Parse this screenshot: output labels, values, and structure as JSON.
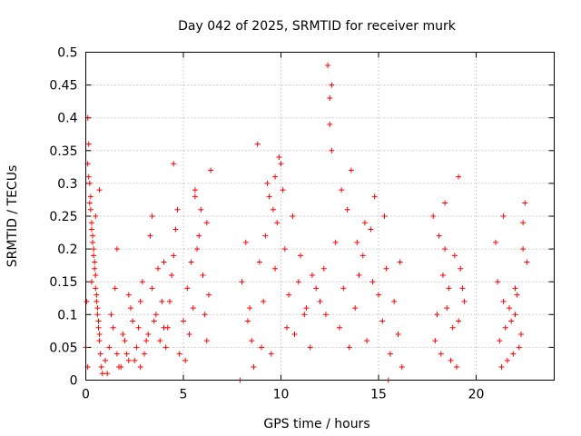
{
  "chart_data": {
    "type": "scatter",
    "title": "Day 042 of 2025, SRMTID for receiver murk",
    "xlabel": "GPS time / hours",
    "ylabel": "SRMTID / TECUs",
    "xlim": [
      0,
      24
    ],
    "ylim": [
      0,
      0.5
    ],
    "x_ticks": [
      "0",
      "5",
      "10",
      "15",
      "20"
    ],
    "y_ticks": [
      "0",
      "0.05",
      "0.1",
      "0.15",
      "0.2",
      "0.25",
      "0.3",
      "0.35",
      "0.4",
      "0.45",
      "0.5"
    ],
    "grid": true,
    "marker": "+",
    "color": "#ff0000",
    "series": [
      {
        "x": [
          0.0,
          0.05,
          0.1,
          0.15,
          0.2,
          0.25,
          0.3,
          0.35,
          0.4,
          0.45,
          0.5,
          0.55,
          0.6,
          0.65,
          0.7,
          0.75,
          0.8,
          0.85,
          0.1,
          0.2,
          0.3,
          0.4,
          0.5,
          0.6,
          0.7,
          0.15,
          0.25,
          0.35,
          0.45,
          0.55,
          0.65,
          0.1,
          0.3,
          0.5,
          0.7,
          1.0,
          1.2,
          1.4,
          1.6,
          1.8,
          2.0,
          2.2,
          2.4,
          2.6,
          2.8,
          3.0,
          3.2,
          3.4,
          3.6,
          3.8,
          4.0,
          1.1,
          1.3,
          1.5,
          1.7,
          1.9,
          2.1,
          2.3,
          2.5,
          2.7,
          2.9,
          3.1,
          3.3,
          3.5,
          3.7,
          3.9,
          1.6,
          2.2,
          2.8,
          3.4,
          4.0,
          4.1,
          4.3,
          4.5,
          4.7,
          4.2,
          4.4,
          4.6,
          4.8,
          5.0,
          5.2,
          5.4,
          5.6,
          5.8,
          6.0,
          6.2,
          6.4,
          5.1,
          5.3,
          5.5,
          5.7,
          5.9,
          6.1,
          6.3,
          4.5,
          5.6,
          6.2,
          7.9,
          8.2,
          8.5,
          8.8,
          9.1,
          9.4,
          9.7,
          10.0,
          10.3,
          10.6,
          10.9,
          11.2,
          11.5,
          11.8,
          8.0,
          8.3,
          8.6,
          8.9,
          9.2,
          9.5,
          9.8,
          10.1,
          10.4,
          10.7,
          11.0,
          11.3,
          11.6,
          9.0,
          9.3,
          9.6,
          9.9,
          10.2,
          8.4,
          9.7,
          12.0,
          12.2,
          12.4,
          12.6,
          12.8,
          13.0,
          13.2,
          13.4,
          13.6,
          13.8,
          14.0,
          14.2,
          14.4,
          14.6,
          14.8,
          15.0,
          15.2,
          15.4,
          15.6,
          15.8,
          16.0,
          16.2,
          12.5,
          12.5,
          12.6,
          13.1,
          13.9,
          14.7,
          15.3,
          16.1,
          12.3,
          13.5,
          14.3,
          15.5,
          17.8,
          18.0,
          18.2,
          18.4,
          18.6,
          18.8,
          19.0,
          19.2,
          19.4,
          17.9,
          18.1,
          18.3,
          18.5,
          18.7,
          18.9,
          19.1,
          19.3,
          19.1,
          18.4,
          21.0,
          21.2,
          21.4,
          21.6,
          21.8,
          22.0,
          22.2,
          22.4,
          22.6,
          21.1,
          21.3,
          21.5,
          21.7,
          21.9,
          22.1,
          22.3,
          22.5,
          21.4,
          22.4,
          22.0
        ],
        "y": [
          0.05,
          0.12,
          0.4,
          0.36,
          0.3,
          0.28,
          0.24,
          0.22,
          0.2,
          0.18,
          0.14,
          0.12,
          0.1,
          0.08,
          0.06,
          0.04,
          0.02,
          0.01,
          0.33,
          0.27,
          0.23,
          0.19,
          0.16,
          0.11,
          0.07,
          0.31,
          0.26,
          0.21,
          0.17,
          0.13,
          0.09,
          0.02,
          0.15,
          0.25,
          0.29,
          0.03,
          0.05,
          0.08,
          0.04,
          0.02,
          0.06,
          0.03,
          0.09,
          0.05,
          0.12,
          0.04,
          0.07,
          0.14,
          0.1,
          0.06,
          0.18,
          0.01,
          0.1,
          0.14,
          0.02,
          0.07,
          0.04,
          0.11,
          0.03,
          0.08,
          0.15,
          0.06,
          0.22,
          0.09,
          0.17,
          0.12,
          0.2,
          0.13,
          0.02,
          0.25,
          0.08,
          0.05,
          0.12,
          0.19,
          0.26,
          0.08,
          0.16,
          0.23,
          0.04,
          0.09,
          0.14,
          0.18,
          0.28,
          0.22,
          0.16,
          0.24,
          0.32,
          0.03,
          0.07,
          0.11,
          0.2,
          0.26,
          0.1,
          0.13,
          0.33,
          0.29,
          0.06,
          0.0,
          0.21,
          0.06,
          0.36,
          0.12,
          0.28,
          0.17,
          0.33,
          0.08,
          0.25,
          0.15,
          0.1,
          0.05,
          0.14,
          0.15,
          0.09,
          0.02,
          0.18,
          0.22,
          0.04,
          0.24,
          0.29,
          0.13,
          0.07,
          0.19,
          0.11,
          0.16,
          0.05,
          0.3,
          0.26,
          0.34,
          0.2,
          0.11,
          0.31,
          0.12,
          0.17,
          0.48,
          0.45,
          0.21,
          0.08,
          0.14,
          0.26,
          0.32,
          0.11,
          0.16,
          0.19,
          0.06,
          0.23,
          0.28,
          0.13,
          0.09,
          0.17,
          0.04,
          0.12,
          0.07,
          0.02,
          0.43,
          0.39,
          0.35,
          0.29,
          0.21,
          0.15,
          0.25,
          0.18,
          0.1,
          0.05,
          0.24,
          0.0,
          0.25,
          0.1,
          0.04,
          0.2,
          0.14,
          0.08,
          0.02,
          0.17,
          0.12,
          0.06,
          0.22,
          0.16,
          0.11,
          0.03,
          0.19,
          0.09,
          0.14,
          0.31,
          0.27,
          0.21,
          0.06,
          0.12,
          0.03,
          0.09,
          0.14,
          0.05,
          0.24,
          0.18,
          0.15,
          0.02,
          0.08,
          0.11,
          0.04,
          0.13,
          0.07,
          0.27,
          0.25,
          0.2,
          0.1
        ]
      }
    ]
  }
}
